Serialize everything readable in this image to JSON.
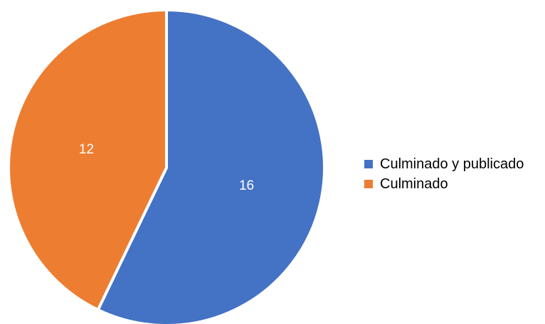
{
  "chart_data": {
    "type": "pie",
    "title": "",
    "slices": [
      {
        "label": "Culminado y publicado",
        "value": 16,
        "color": "#4472c4"
      },
      {
        "label": "Culminado",
        "value": 12,
        "color": "#ed7d31"
      }
    ],
    "data_labels_shown": true,
    "start_angle_deg": 0,
    "direction": "clockwise",
    "legend": {
      "position": "right",
      "entries": [
        "Culminado y publicado",
        "Culminado"
      ]
    }
  }
}
